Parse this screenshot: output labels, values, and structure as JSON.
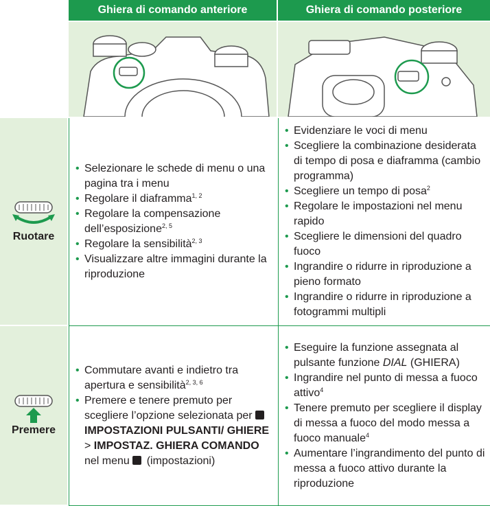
{
  "table": {
    "headers": [
      "Ghiera di comando anteriore",
      "Ghiera di comando posteriore"
    ],
    "rows": [
      {
        "label": "Ruotare",
        "cells": [
          [
            [
              "Selezionare le schede di menu o una pagina tra i menu"
            ],
            [
              "Regolare il diaframma",
              {
                "sup": "1, 2"
              }
            ],
            [
              "Regolare la compensazione dell’esposizione",
              {
                "sup": "2, 5"
              }
            ],
            [
              "Regolare la sensibilità",
              {
                "sup": "2, 3"
              }
            ],
            [
              "Visualizzare altre immagini durante la riproduzione"
            ]
          ],
          [
            [
              "Evidenziare le voci di menu"
            ],
            [
              "Scegliere la combinazione desiderata di tempo di posa e diaframma (cambio programma)"
            ],
            [
              "Scegliere un tempo di posa",
              {
                "sup": "2"
              }
            ],
            [
              "Regolare le impostazioni nel menu rapido"
            ],
            [
              "Scegliere le dimensioni del quadro fuoco"
            ],
            [
              "Ingrandire o ridurre in riproduzione a pieno formato"
            ],
            [
              "Ingrandire o ridurre in riproduzione a fotogrammi multipli"
            ]
          ]
        ]
      },
      {
        "label": "Premere",
        "cells": [
          [
            [
              "Commutare avanti e indietro tra apertura e sensibilità",
              {
                "sup": "2, 3, 6"
              }
            ],
            [
              "Premere e tenere premuto per scegliere l’opzione selezionata per ",
              {
                "icon": true,
                "b": "IMPOSTAZIONI PULSANTI/ GHIERE"
              },
              " > ",
              {
                "b": "IMPOSTAZ. GHIERA COMANDO"
              },
              " nel menu ",
              {
                "icon": true
              },
              " (impostazioni)"
            ]
          ],
          [
            [
              "Eseguire la funzione assegnata al pulsante funzione ",
              {
                "i": "DIAL"
              },
              " (GHIERA)"
            ],
            [
              "Ingrandire nel punto di messa a fuoco attivo",
              {
                "sup": "4"
              }
            ],
            [
              "Tenere premuto per scegliere il display di messa a fuoco del modo messa a fuoco manuale",
              {
                "sup": "4"
              }
            ],
            [
              "Aumentare l’ingrandimento del punto di messa a fuoco attivo durante la riproduzione"
            ]
          ]
        ]
      }
    ]
  }
}
